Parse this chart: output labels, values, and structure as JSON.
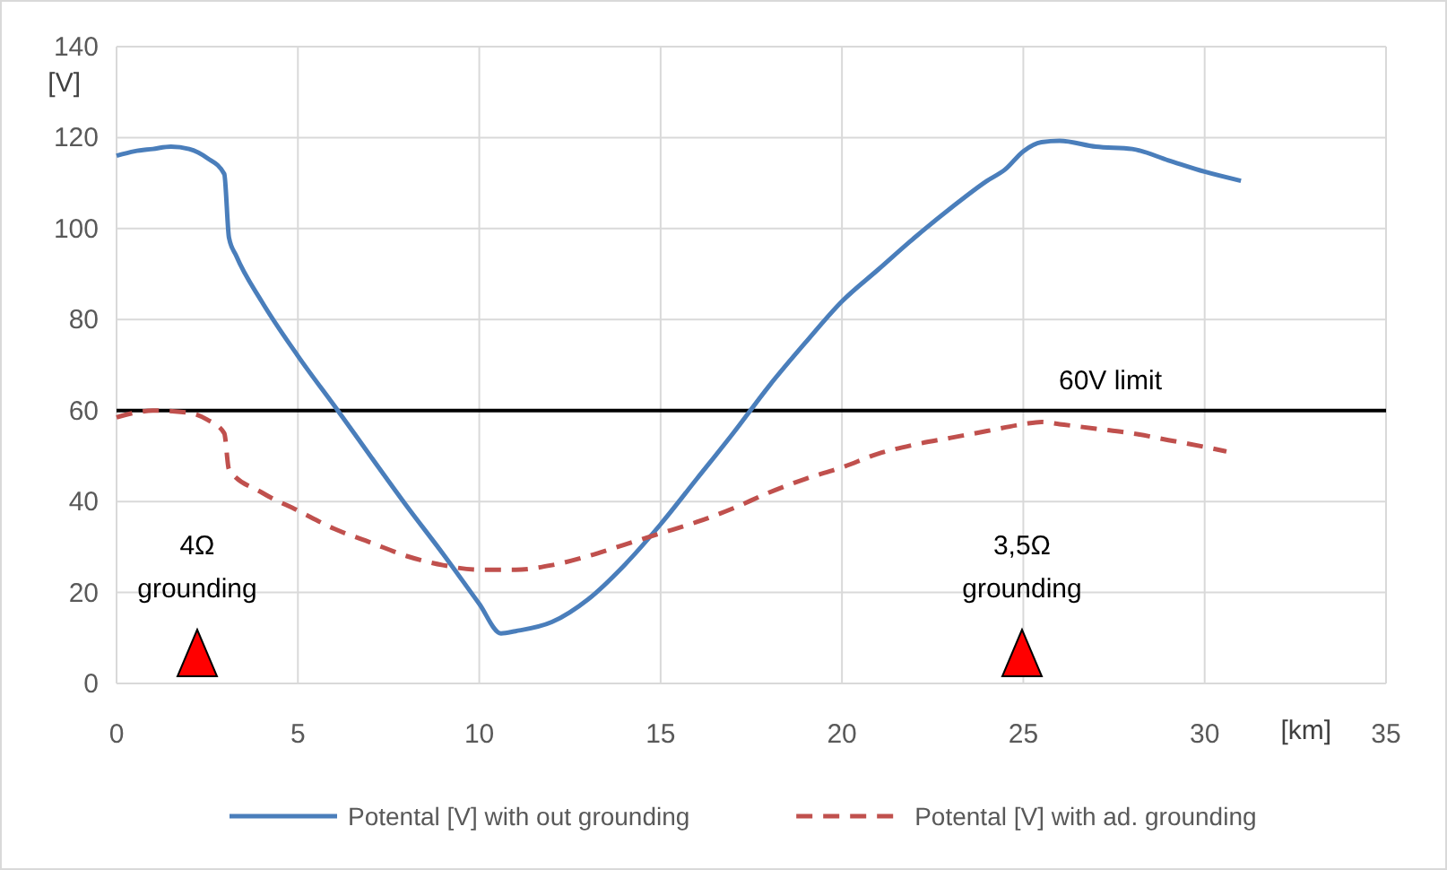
{
  "chart_data": {
    "type": "line",
    "xlabel": "[km]",
    "ylabel": "[V]",
    "xlim": [
      0,
      35
    ],
    "xticks": [
      0,
      5,
      10,
      15,
      20,
      25,
      30,
      35
    ],
    "ylim": [
      0,
      140
    ],
    "yticks": [
      0,
      20,
      40,
      60,
      80,
      100,
      120,
      140
    ],
    "grid": true,
    "legend": "bottom",
    "series": [
      {
        "name": "Potental [V] with out grounding",
        "color": "#4a7ebb",
        "line_style": "solid",
        "x": [
          0,
          0.5,
          1,
          1.5,
          2,
          2.5,
          2.97,
          3.1,
          3.3,
          4,
          5,
          6.1,
          7,
          8,
          9,
          10,
          10.6,
          11,
          12,
          13,
          14,
          15,
          16,
          17,
          18,
          19,
          20,
          21,
          22,
          23,
          24,
          24.5,
          25,
          25.5,
          26,
          27,
          28,
          29,
          30,
          31
        ],
        "values": [
          116,
          117,
          117.5,
          118,
          117.5,
          115.5,
          112,
          98,
          94,
          84,
          72,
          60,
          50,
          39,
          28.5,
          17.5,
          11,
          11.5,
          13.5,
          18.5,
          26,
          35,
          45,
          55,
          65.5,
          75,
          84,
          91,
          98,
          104.5,
          110.5,
          113,
          117,
          119,
          119.3,
          118,
          117.5,
          115,
          112.5,
          110.5
        ]
      },
      {
        "name": "Potental [V] with ad. grounding",
        "color": "#c0504d",
        "line_style": "dashed",
        "x": [
          0,
          0.5,
          1,
          2,
          2.5,
          2.97,
          3.1,
          4,
          5,
          6,
          7,
          8,
          9,
          10,
          11,
          12,
          13,
          14,
          15,
          16,
          17,
          18,
          19,
          20,
          21,
          22,
          23,
          24,
          25,
          25.5,
          26,
          27,
          28,
          29,
          30,
          30.6
        ],
        "values": [
          58.5,
          59.5,
          60,
          59.5,
          58,
          55,
          47,
          42,
          38,
          34,
          31,
          28,
          26,
          25,
          25,
          26,
          28,
          30.5,
          33,
          35.5,
          38.5,
          42,
          45,
          47.5,
          50.5,
          52.5,
          54,
          55.5,
          57,
          57.5,
          57,
          56,
          55,
          53.5,
          52,
          51
        ]
      }
    ],
    "ref_lines": [
      {
        "axis": "y",
        "value": 60,
        "label": "60V limit",
        "color": "#000000"
      }
    ],
    "annotations": [
      "4Ω\ngrounding",
      "3,5Ω\ngrounding"
    ]
  }
}
